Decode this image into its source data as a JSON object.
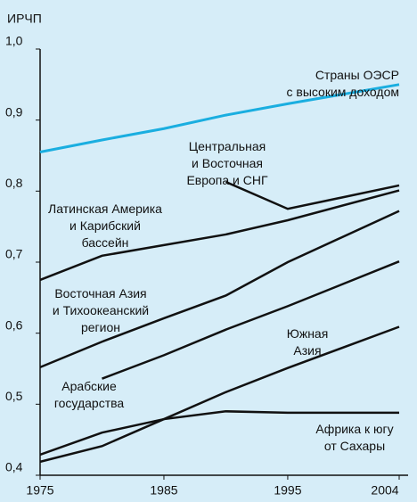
{
  "chart_data": {
    "type": "line",
    "y_label": "ИРЧП",
    "x": [
      1975,
      1980,
      1985,
      1990,
      1995,
      2004
    ],
    "xlim": [
      1975,
      2004
    ],
    "xticks": [
      1975,
      1985,
      1995,
      2004
    ],
    "ylim": [
      0.4,
      1.0
    ],
    "yticks": [
      {
        "value": 0.4,
        "label": "0,4"
      },
      {
        "value": 0.5,
        "label": "0,5"
      },
      {
        "value": 0.6,
        "label": "0,6"
      },
      {
        "value": 0.7,
        "label": "0,7"
      },
      {
        "value": 0.8,
        "label": "0,8"
      },
      {
        "value": 0.9,
        "label": "0,9"
      },
      {
        "value": 1.0,
        "label": "1,0"
      }
    ],
    "series": [
      {
        "name": "Страны ОЭСР\nс высоким доходом",
        "color": "#1aaee0",
        "values": [
          0.855,
          0.872,
          0.888,
          0.907,
          0.923,
          0.95
        ]
      },
      {
        "name": "Центральная\nи Восточная\nЕвропа и СНГ",
        "color": "#111111",
        "values": [
          null,
          null,
          null,
          0.813,
          0.775,
          0.808
        ]
      },
      {
        "name": "Латинская Америка\nи Карибский\nбассейн",
        "color": "#111111",
        "values": [
          0.675,
          0.709,
          0.724,
          0.739,
          0.759,
          0.801
        ]
      },
      {
        "name": "Восточная Азия\nи Тихоокеанский\nрегион",
        "color": "#111111",
        "values": [
          0.552,
          0.588,
          0.621,
          0.653,
          0.7,
          0.772
        ]
      },
      {
        "name": "Южная\nАзия",
        "color": "#111111",
        "values": [
          0.419,
          0.441,
          0.479,
          0.517,
          0.551,
          0.609
        ]
      },
      {
        "name": "Арабские\nгосударства",
        "color": "#111111",
        "values": [
          null,
          0.536,
          0.569,
          0.605,
          0.638,
          0.701
        ]
      },
      {
        "name": "Африка к югу\nот Сахары",
        "color": "#111111",
        "values": [
          0.429,
          0.46,
          0.479,
          0.49,
          0.488,
          0.488
        ]
      }
    ]
  }
}
